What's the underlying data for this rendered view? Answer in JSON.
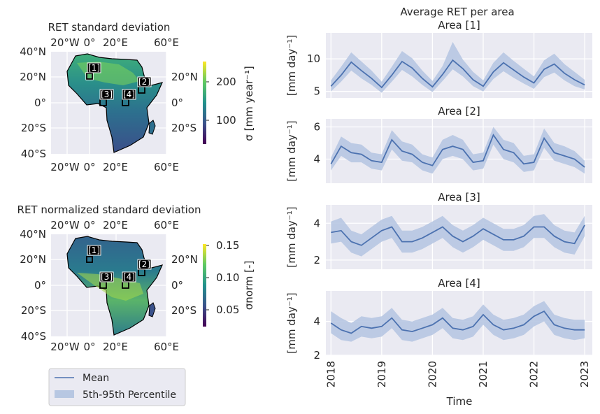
{
  "maps": [
    {
      "title": "RET standard deviation",
      "lon_ticks": [
        "20°W",
        "0°",
        "20°E",
        "60°E"
      ],
      "lat_ticks_left": [
        "40°N",
        "20°N",
        "0°",
        "20°S",
        "40°S"
      ],
      "lat_ticks_right": [
        "20°N",
        "0°",
        "20°S"
      ],
      "colorbar": {
        "label": "σ [mm year⁻¹]",
        "ticks": [
          "200",
          "100"
        ],
        "range": [
          40,
          255
        ]
      },
      "area_labels": [
        "[1]",
        "[2]",
        "[3]",
        "[4]"
      ]
    },
    {
      "title": "RET normalized standard deviation",
      "lon_ticks": [
        "20°W",
        "0°",
        "20°E",
        "60°E"
      ],
      "lat_ticks_left": [
        "40°N",
        "20°N",
        "0°",
        "20°S",
        "40°S"
      ],
      "lat_ticks_right": [
        "20°N",
        "0°",
        "20°S"
      ],
      "colorbar": {
        "label": "σnorm [-]",
        "ticks": [
          "0.15",
          "0.10",
          "0.05"
        ],
        "range": [
          0.025,
          0.155
        ]
      },
      "area_labels": [
        "[1]",
        "[2]",
        "[3]",
        "[4]"
      ]
    }
  ],
  "legend": {
    "mean": "Mean",
    "band": "5th-95th Percentile"
  },
  "chart_data": {
    "type": "line",
    "title": "Average RET per area",
    "xlabel": "Time",
    "x_ticks": [
      "2018",
      "2019",
      "2020",
      "2021",
      "2022",
      "2023"
    ],
    "xlim": [
      "2018-01",
      "2023-01"
    ],
    "colors": {
      "mean": "#4c72b0",
      "band": "#b7c7e2",
      "panel_bg": "#eaeaf2",
      "grid": "#ffffff"
    },
    "panels": [
      {
        "title": "Area [1]",
        "ylabel": "[mm day⁻¹]",
        "yticks": [
          5,
          10
        ],
        "ylim": [
          4,
          14
        ],
        "x": [
          2018.0,
          2018.2,
          2018.4,
          2018.6,
          2018.8,
          2019.0,
          2019.2,
          2019.4,
          2019.6,
          2019.8,
          2020.0,
          2020.2,
          2020.4,
          2020.6,
          2020.8,
          2021.0,
          2021.2,
          2021.4,
          2021.6,
          2021.8,
          2022.0,
          2022.2,
          2022.4,
          2022.6,
          2022.8,
          2023.0
        ],
        "mean": [
          5.8,
          7.5,
          9.5,
          8.2,
          7.0,
          5.6,
          7.5,
          9.6,
          8.6,
          7.0,
          5.7,
          7.6,
          9.8,
          8.5,
          6.8,
          5.8,
          8.0,
          9.4,
          8.3,
          7.2,
          6.3,
          8.4,
          9.2,
          7.8,
          6.8,
          6.0
        ],
        "p5": [
          5.0,
          6.5,
          8.2,
          7.0,
          6.0,
          4.8,
          6.5,
          8.3,
          7.3,
          6.0,
          4.9,
          6.6,
          8.4,
          7.3,
          5.8,
          5.0,
          6.9,
          8.1,
          7.1,
          6.2,
          5.4,
          7.2,
          7.9,
          6.7,
          5.8,
          5.3
        ],
        "p95": [
          6.7,
          8.8,
          11.0,
          9.6,
          8.2,
          6.5,
          8.8,
          11.2,
          10.1,
          8.2,
          6.6,
          8.9,
          12.6,
          9.9,
          8.0,
          6.7,
          9.4,
          11.0,
          9.7,
          8.5,
          7.3,
          9.8,
          10.8,
          9.2,
          8.0,
          6.8
        ]
      },
      {
        "title": "Area [2]",
        "ylabel": "[mm day⁻¹]",
        "yticks": [
          4,
          6
        ],
        "ylim": [
          2.5,
          6.5
        ],
        "x": [
          2018.0,
          2018.2,
          2018.4,
          2018.6,
          2018.8,
          2019.0,
          2019.2,
          2019.4,
          2019.6,
          2019.8,
          2020.0,
          2020.2,
          2020.4,
          2020.6,
          2020.8,
          2021.0,
          2021.2,
          2021.4,
          2021.6,
          2021.8,
          2022.0,
          2022.2,
          2022.4,
          2022.6,
          2022.8,
          2023.0
        ],
        "mean": [
          3.7,
          4.8,
          4.4,
          4.3,
          3.9,
          3.8,
          5.2,
          4.5,
          4.3,
          3.8,
          3.6,
          4.6,
          4.8,
          4.6,
          3.8,
          3.9,
          5.5,
          4.6,
          4.4,
          3.7,
          3.8,
          5.3,
          4.4,
          4.2,
          4.0,
          3.5
        ],
        "p5": [
          3.3,
          4.2,
          3.8,
          3.8,
          3.4,
          3.3,
          4.6,
          3.9,
          3.8,
          3.3,
          3.1,
          4.0,
          4.2,
          4.0,
          3.3,
          3.4,
          4.9,
          4.0,
          3.8,
          3.2,
          3.3,
          4.7,
          3.9,
          3.7,
          3.5,
          3.1
        ],
        "p95": [
          4.1,
          5.4,
          5.0,
          4.9,
          4.4,
          4.3,
          5.8,
          5.1,
          4.9,
          4.3,
          4.1,
          5.2,
          5.5,
          5.2,
          4.3,
          4.4,
          6.0,
          5.2,
          5.0,
          4.2,
          4.3,
          5.9,
          5.0,
          4.8,
          4.5,
          3.9
        ]
      },
      {
        "title": "Area [3]",
        "ylabel": "[mm day⁻¹]",
        "yticks": [
          2,
          4
        ],
        "ylim": [
          1.5,
          5.0
        ],
        "x": [
          2018.0,
          2018.2,
          2018.4,
          2018.6,
          2018.8,
          2019.0,
          2019.2,
          2019.4,
          2019.6,
          2019.8,
          2020.0,
          2020.2,
          2020.4,
          2020.6,
          2020.8,
          2021.0,
          2021.2,
          2021.4,
          2021.6,
          2021.8,
          2022.0,
          2022.2,
          2022.4,
          2022.6,
          2022.8,
          2023.0
        ],
        "mean": [
          3.5,
          3.6,
          3.0,
          2.8,
          3.2,
          3.6,
          3.8,
          3.0,
          3.0,
          3.2,
          3.5,
          3.8,
          3.3,
          3.0,
          3.3,
          3.7,
          3.4,
          3.1,
          3.1,
          3.3,
          3.8,
          3.8,
          3.3,
          3.0,
          2.9,
          3.9
        ],
        "p5": [
          2.9,
          3.0,
          2.4,
          2.2,
          2.6,
          3.0,
          3.2,
          2.4,
          2.4,
          2.6,
          2.9,
          3.2,
          2.7,
          2.4,
          2.7,
          3.1,
          2.8,
          2.5,
          2.5,
          2.7,
          3.2,
          3.2,
          2.7,
          2.4,
          2.3,
          3.3
        ],
        "p95": [
          4.1,
          4.3,
          3.6,
          3.4,
          3.8,
          4.2,
          4.4,
          3.6,
          3.6,
          3.8,
          4.1,
          4.4,
          3.9,
          3.6,
          3.9,
          4.3,
          4.0,
          3.7,
          3.7,
          3.9,
          4.4,
          4.5,
          3.9,
          3.6,
          3.5,
          4.4
        ]
      },
      {
        "title": "Area [4]",
        "ylabel": "[mm day⁻¹]",
        "yticks": [
          2,
          4
        ],
        "ylim": [
          2.0,
          5.8
        ],
        "x": [
          2018.0,
          2018.2,
          2018.4,
          2018.6,
          2018.8,
          2019.0,
          2019.2,
          2019.4,
          2019.6,
          2019.8,
          2020.0,
          2020.2,
          2020.4,
          2020.6,
          2020.8,
          2021.0,
          2021.2,
          2021.4,
          2021.6,
          2021.8,
          2022.0,
          2022.2,
          2022.4,
          2022.6,
          2022.8,
          2023.0
        ],
        "mean": [
          3.9,
          3.5,
          3.3,
          3.7,
          3.6,
          3.7,
          4.2,
          3.5,
          3.4,
          3.6,
          3.8,
          4.2,
          3.6,
          3.5,
          3.7,
          4.4,
          3.8,
          3.5,
          3.6,
          3.8,
          4.3,
          4.6,
          3.8,
          3.6,
          3.5,
          3.5
        ],
        "p5": [
          3.3,
          2.9,
          2.8,
          3.1,
          3.0,
          3.1,
          3.6,
          2.9,
          2.8,
          3.0,
          3.2,
          3.6,
          3.0,
          2.9,
          3.1,
          3.8,
          3.2,
          2.9,
          3.0,
          3.2,
          3.7,
          4.0,
          3.2,
          3.0,
          2.9,
          3.0
        ],
        "p95": [
          4.6,
          4.2,
          3.9,
          4.3,
          4.2,
          4.3,
          4.8,
          4.1,
          4.0,
          4.2,
          4.4,
          4.8,
          4.2,
          4.1,
          4.3,
          5.0,
          4.4,
          4.1,
          4.2,
          4.4,
          4.9,
          5.2,
          4.4,
          4.2,
          4.1,
          4.1
        ]
      }
    ]
  }
}
